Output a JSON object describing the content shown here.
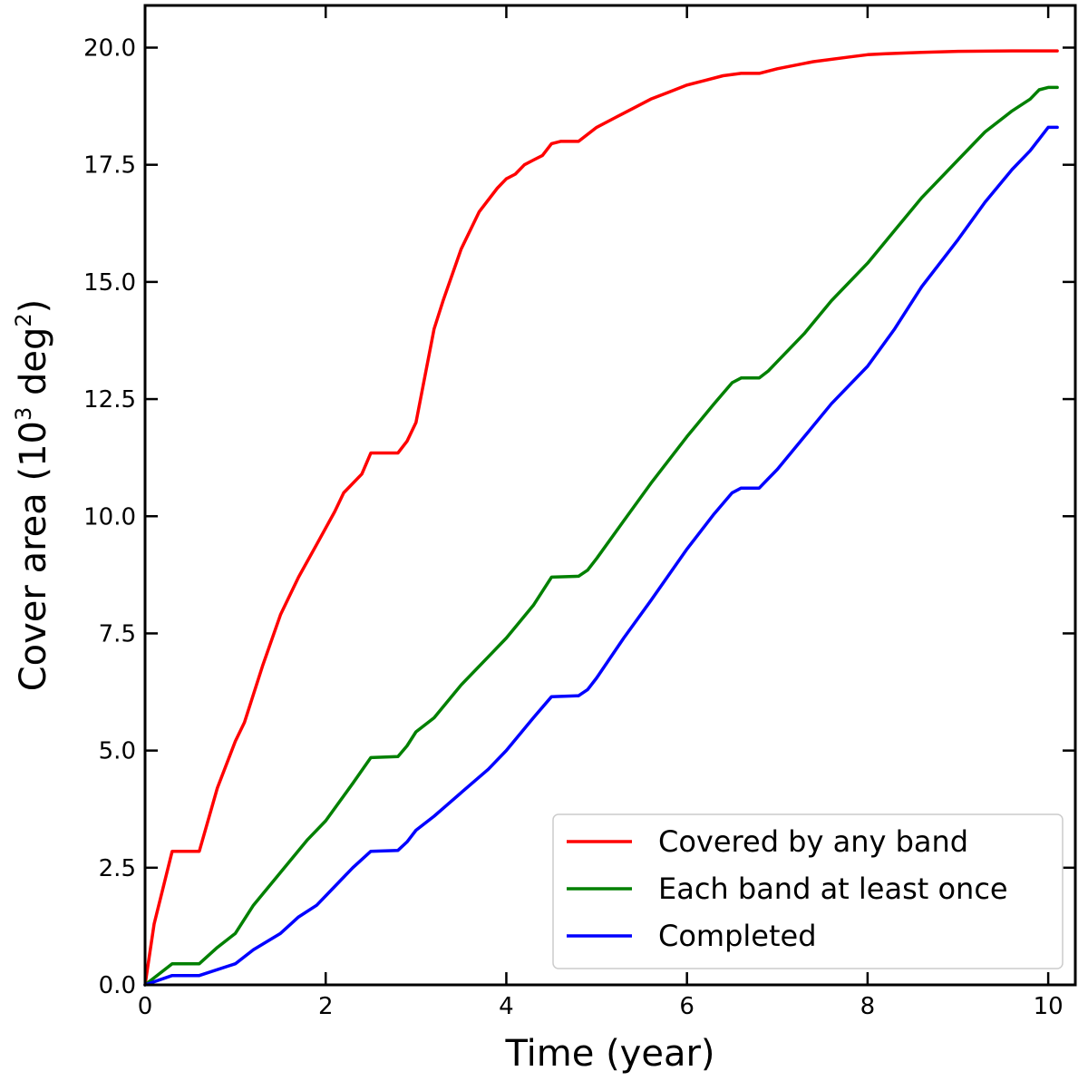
{
  "chart_data": {
    "type": "line",
    "xlabel": "Time (year)",
    "ylabel": {
      "prefix": "Cover area (10",
      "exp1": "3",
      "middle": " deg",
      "exp2": "2",
      "suffix": ")"
    },
    "xlim": [
      0,
      10.3
    ],
    "ylim": [
      0,
      20.9
    ],
    "xticks": [
      0,
      2,
      4,
      6,
      8,
      10
    ],
    "xtick_labels": [
      "0",
      "2",
      "4",
      "6",
      "8",
      "10"
    ],
    "yticks": [
      0,
      2.5,
      5,
      7.5,
      10,
      12.5,
      15,
      17.5,
      20
    ],
    "ytick_labels": [
      "0.0",
      "2.5",
      "5.0",
      "7.5",
      "10.0",
      "12.5",
      "15.0",
      "17.5",
      "20.0"
    ],
    "grid": false,
    "legend_position": "lower-right",
    "series": [
      {
        "name": "Covered by any band",
        "color": "#ff0000",
        "x": [
          0,
          0.1,
          0.3,
          0.6,
          0.8,
          1.0,
          1.1,
          1.3,
          1.5,
          1.7,
          1.9,
          2.1,
          2.2,
          2.4,
          2.5,
          2.8,
          2.9,
          3.0,
          3.1,
          3.2,
          3.3,
          3.5,
          3.7,
          3.9,
          4.0,
          4.1,
          4.2,
          4.3,
          4.4,
          4.5,
          4.6,
          4.8,
          5.0,
          5.2,
          5.4,
          5.6,
          5.8,
          6.0,
          6.2,
          6.4,
          6.6,
          6.8,
          7.0,
          7.4,
          7.8,
          8.0,
          8.2,
          8.6,
          9.0,
          9.6,
          10.1
        ],
        "y": [
          0,
          1.3,
          2.85,
          2.85,
          4.2,
          5.2,
          5.6,
          6.8,
          7.9,
          8.7,
          9.4,
          10.1,
          10.5,
          10.9,
          11.35,
          11.35,
          11.6,
          12.0,
          13.0,
          14.0,
          14.6,
          15.7,
          16.5,
          17.0,
          17.2,
          17.3,
          17.5,
          17.6,
          17.7,
          17.95,
          18.0,
          18.0,
          18.3,
          18.5,
          18.7,
          18.9,
          19.05,
          19.2,
          19.3,
          19.4,
          19.45,
          19.45,
          19.55,
          19.7,
          19.8,
          19.85,
          19.87,
          19.9,
          19.92,
          19.93,
          19.93
        ]
      },
      {
        "name": "Each band at least once",
        "color": "#008000",
        "x": [
          0,
          0.3,
          0.6,
          0.8,
          1.0,
          1.2,
          1.5,
          1.8,
          2.0,
          2.3,
          2.5,
          2.8,
          2.9,
          3.0,
          3.2,
          3.5,
          3.8,
          4.0,
          4.3,
          4.5,
          4.8,
          4.9,
          5.0,
          5.3,
          5.6,
          6.0,
          6.3,
          6.5,
          6.6,
          6.8,
          6.9,
          7.0,
          7.3,
          7.6,
          8.0,
          8.3,
          8.6,
          9.0,
          9.3,
          9.6,
          9.8,
          9.9,
          10.0,
          10.1
        ],
        "y": [
          0,
          0.45,
          0.45,
          0.8,
          1.1,
          1.7,
          2.4,
          3.1,
          3.5,
          4.3,
          4.85,
          4.87,
          5.1,
          5.4,
          5.7,
          6.4,
          7.0,
          7.4,
          8.1,
          8.7,
          8.72,
          8.85,
          9.1,
          9.9,
          10.7,
          11.7,
          12.4,
          12.85,
          12.95,
          12.95,
          13.1,
          13.3,
          13.9,
          14.6,
          15.4,
          16.1,
          16.8,
          17.6,
          18.2,
          18.65,
          18.9,
          19.1,
          19.15,
          19.15
        ]
      },
      {
        "name": "Completed",
        "color": "#0000ff",
        "x": [
          0,
          0.3,
          0.6,
          1.0,
          1.2,
          1.5,
          1.7,
          1.9,
          2.1,
          2.3,
          2.5,
          2.8,
          2.9,
          3.0,
          3.2,
          3.5,
          3.8,
          4.0,
          4.3,
          4.5,
          4.8,
          4.9,
          5.0,
          5.3,
          5.6,
          6.0,
          6.3,
          6.5,
          6.6,
          6.8,
          6.9,
          7.0,
          7.3,
          7.6,
          8.0,
          8.3,
          8.6,
          9.0,
          9.3,
          9.6,
          9.8,
          9.9,
          10.0,
          10.1
        ],
        "y": [
          0,
          0.2,
          0.2,
          0.45,
          0.75,
          1.1,
          1.45,
          1.7,
          2.1,
          2.5,
          2.85,
          2.87,
          3.05,
          3.3,
          3.6,
          4.1,
          4.6,
          5.0,
          5.7,
          6.15,
          6.17,
          6.3,
          6.55,
          7.4,
          8.2,
          9.3,
          10.05,
          10.5,
          10.6,
          10.6,
          10.8,
          11.0,
          11.7,
          12.4,
          13.2,
          14.0,
          14.9,
          15.9,
          16.7,
          17.4,
          17.8,
          18.05,
          18.3,
          18.3
        ]
      }
    ]
  }
}
